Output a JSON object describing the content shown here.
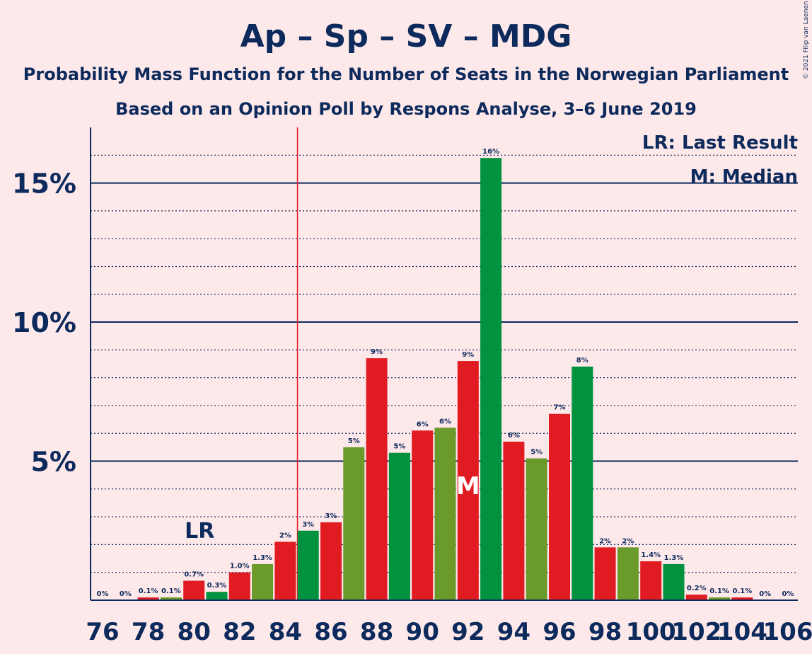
{
  "chart_data": {
    "type": "bar",
    "title": "Ap – Sp – SV – MDG",
    "subtitle": "Probability Mass Function for the Number of Seats in the Norwegian Parliament",
    "subtitle2": "Based on an Opinion Poll by Respons Analyse, 3–6 June 2019",
    "copyright": "© 2021 Filip van Laenen",
    "legend": {
      "lr": "LR: Last Result",
      "m": "M: Median",
      "placement": "top-right"
    },
    "last_result": 80,
    "median": 92,
    "lr_marker": "LR",
    "median_marker": "M",
    "ylim": [
      0,
      17
    ],
    "yticks": [
      {
        "value": 5,
        "label": "5%"
      },
      {
        "value": 10,
        "label": "10%"
      },
      {
        "value": 15,
        "label": "15%"
      }
    ],
    "xticks": [
      76,
      78,
      80,
      82,
      84,
      86,
      88,
      90,
      92,
      94,
      96,
      98,
      100,
      102,
      104,
      106
    ],
    "bars": [
      {
        "x": 76,
        "value": 0,
        "label": "0%"
      },
      {
        "x": 77,
        "value": 0,
        "label": "0%"
      },
      {
        "x": 78,
        "value": 0.1,
        "label": "0.1%"
      },
      {
        "x": 79,
        "value": 0.1,
        "label": "0.1%"
      },
      {
        "x": 80,
        "value": 0.7,
        "label": "0.7%"
      },
      {
        "x": 81,
        "value": 0.3,
        "label": "0.3%"
      },
      {
        "x": 82,
        "value": 1.0,
        "label": "1.0%"
      },
      {
        "x": 83,
        "value": 1.3,
        "label": "1.3%"
      },
      {
        "x": 84,
        "value": 2.1,
        "label": "2%"
      },
      {
        "x": 85,
        "value": 2.5,
        "label": "3%"
      },
      {
        "x": 86,
        "value": 2.8,
        "label": "3%"
      },
      {
        "x": 87,
        "value": 5.5,
        "label": "5%"
      },
      {
        "x": 88,
        "value": 8.7,
        "label": "9%"
      },
      {
        "x": 89,
        "value": 5.3,
        "label": "5%"
      },
      {
        "x": 90,
        "value": 6.1,
        "label": "6%"
      },
      {
        "x": 91,
        "value": 6.2,
        "label": "6%"
      },
      {
        "x": 92,
        "value": 8.6,
        "label": "9%"
      },
      {
        "x": 93,
        "value": 15.9,
        "label": "16%"
      },
      {
        "x": 94,
        "value": 5.7,
        "label": "6%"
      },
      {
        "x": 95,
        "value": 5.1,
        "label": "5%"
      },
      {
        "x": 96,
        "value": 6.7,
        "label": "7%"
      },
      {
        "x": 97,
        "value": 8.4,
        "label": "8%"
      },
      {
        "x": 98,
        "value": 1.9,
        "label": "2%"
      },
      {
        "x": 99,
        "value": 1.9,
        "label": "2%"
      },
      {
        "x": 100,
        "value": 1.4,
        "label": "1.4%"
      },
      {
        "x": 101,
        "value": 1.3,
        "label": "1.3%"
      },
      {
        "x": 102,
        "value": 0.2,
        "label": "0.2%"
      },
      {
        "x": 103,
        "value": 0.1,
        "label": "0.1%"
      },
      {
        "x": 104,
        "value": 0.1,
        "label": "0.1%"
      },
      {
        "x": 105,
        "value": 0,
        "label": "0%"
      },
      {
        "x": 106,
        "value": 0,
        "label": "0%"
      }
    ],
    "colors": {
      "background": "#fde8ea",
      "red": "#e01c22",
      "green_dark": "#00923f",
      "green_olive": "#6a9a2a",
      "axis": "#0d2a5c",
      "majority_line": "#e01c22"
    }
  }
}
